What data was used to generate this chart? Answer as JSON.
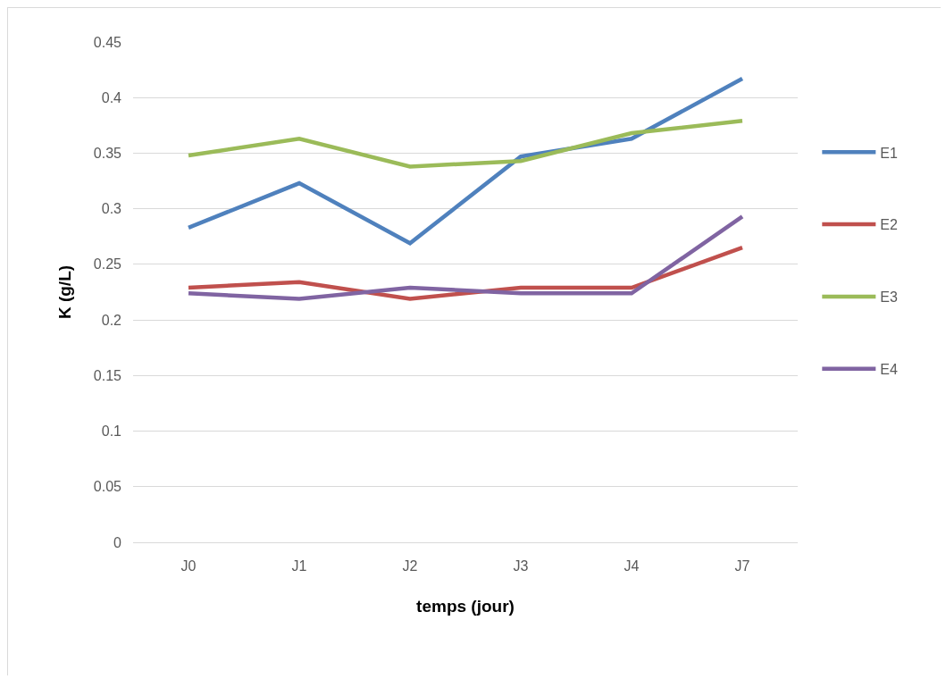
{
  "chart_data": {
    "type": "line",
    "xlabel": "temps (jour)",
    "ylabel": "K (g/L)",
    "categories": [
      "J0",
      "J1",
      "J2",
      "J3",
      "J4",
      "J7"
    ],
    "series": [
      {
        "name": "E1",
        "color": "#4f81bd",
        "values": [
          0.283,
          0.323,
          0.269,
          0.347,
          0.363,
          0.417
        ]
      },
      {
        "name": "E2",
        "color": "#c0504d",
        "values": [
          0.229,
          0.234,
          0.219,
          0.229,
          0.229,
          0.265
        ]
      },
      {
        "name": "E3",
        "color": "#9bbb59",
        "values": [
          0.348,
          0.363,
          0.338,
          0.343,
          0.368,
          0.379
        ]
      },
      {
        "name": "E4",
        "color": "#8064a2",
        "values": [
          0.224,
          0.219,
          0.229,
          0.224,
          0.224,
          0.293
        ]
      }
    ],
    "ylim": [
      0,
      0.45
    ],
    "yticks": [
      0,
      0.05,
      0.1,
      0.15,
      0.2,
      0.25,
      0.3,
      0.35,
      0.4,
      0.45
    ],
    "grid": "y",
    "legend": "right",
    "marker": "none",
    "line_style": "solid"
  }
}
